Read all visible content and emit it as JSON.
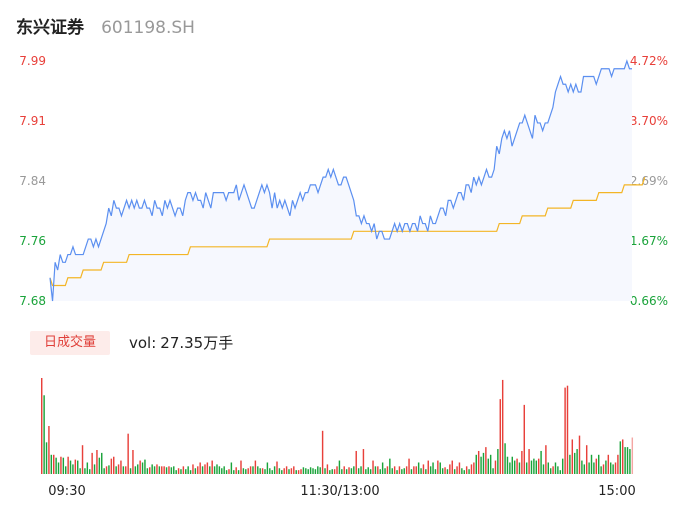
{
  "header": {
    "name": "东兴证券",
    "code": "601198.SH"
  },
  "volume_panel": {
    "tab_label": "日成交量",
    "vol_label": "vol:",
    "vol_value": "27.35万手"
  },
  "colors": {
    "price_line": "#5b8ff0",
    "avg_line": "#f3b526",
    "up": "#e8403a",
    "down": "#1aa33a",
    "neutral": "#999999",
    "area_fill": "#f6f8fe"
  },
  "chart_data": [
    {
      "type": "line",
      "title": "",
      "y_ticks_left": [
        "7.99",
        "7.91",
        "7.84",
        "7.76",
        "7.68"
      ],
      "y_ticks_right": [
        "4.72%",
        "3.70%",
        "2.69%",
        "1.67%",
        "0.66%"
      ],
      "ylim": [
        7.68,
        7.99
      ],
      "x_ticks": [
        "09:30",
        "11:30/13:00",
        "15:00"
      ],
      "series": [
        {
          "key": "price",
          "values": [
            7.71,
            7.68,
            7.73,
            7.72,
            7.74,
            7.73,
            7.73,
            7.74,
            7.74,
            7.75,
            7.74,
            7.74,
            7.74,
            7.74,
            7.75,
            7.76,
            7.76,
            7.75,
            7.76,
            7.75,
            7.76,
            7.77,
            7.78,
            7.8,
            7.79,
            7.81,
            7.8,
            7.8,
            7.79,
            7.8,
            7.81,
            7.8,
            7.81,
            7.8,
            7.81,
            7.8,
            7.8,
            7.81,
            7.8,
            7.8,
            7.79,
            7.81,
            7.8,
            7.8,
            7.79,
            7.81,
            7.8,
            7.81,
            7.8,
            7.79,
            7.8,
            7.8,
            7.79,
            7.81,
            7.82,
            7.82,
            7.81,
            7.82,
            7.81,
            7.81,
            7.8,
            7.82,
            7.81,
            7.8,
            7.82,
            7.82,
            7.82,
            7.82,
            7.82,
            7.81,
            7.82,
            7.82,
            7.82,
            7.83,
            7.81,
            7.82,
            7.83,
            7.82,
            7.81,
            7.8,
            7.8,
            7.81,
            7.82,
            7.83,
            7.82,
            7.83,
            7.82,
            7.8,
            7.82,
            7.8,
            7.81,
            7.8,
            7.81,
            7.8,
            7.79,
            7.81,
            7.8,
            7.81,
            7.82,
            7.81,
            7.82,
            7.82,
            7.83,
            7.83,
            7.83,
            7.82,
            7.83,
            7.84,
            7.84,
            7.85,
            7.84,
            7.85,
            7.84,
            7.83,
            7.83,
            7.84,
            7.84,
            7.83,
            7.82,
            7.81,
            7.79,
            7.79,
            7.78,
            7.79,
            7.78,
            7.78,
            7.77,
            7.78,
            7.76,
            7.77,
            7.77,
            7.76,
            7.76,
            7.76,
            7.77,
            7.78,
            7.77,
            7.78,
            7.77,
            7.78,
            7.78,
            7.77,
            7.78,
            7.78,
            7.77,
            7.79,
            7.78,
            7.78,
            7.77,
            7.79,
            7.78,
            7.78,
            7.79,
            7.8,
            7.8,
            7.79,
            7.81,
            7.81,
            7.8,
            7.81,
            7.82,
            7.82,
            7.81,
            7.83,
            7.83,
            7.82,
            7.84,
            7.83,
            7.84,
            7.83,
            7.84,
            7.85,
            7.84,
            7.84,
            7.85,
            7.88,
            7.87,
            7.89,
            7.9,
            7.89,
            7.9,
            7.88,
            7.89,
            7.9,
            7.91,
            7.91,
            7.92,
            7.91,
            7.9,
            7.89,
            7.92,
            7.91,
            7.91,
            7.9,
            7.91,
            7.91,
            7.92,
            7.93,
            7.95,
            7.96,
            7.97,
            7.96,
            7.96,
            7.95,
            7.96,
            7.95,
            7.96,
            7.95,
            7.95,
            7.97,
            7.97,
            7.97,
            7.97,
            7.97,
            7.96,
            7.97,
            7.98,
            7.98,
            7.98,
            7.98,
            7.97,
            7.98,
            7.98,
            7.98,
            7.98,
            7.98,
            7.99,
            7.98,
            7.98
          ]
        },
        {
          "key": "average",
          "values": [
            7.71,
            7.7,
            7.7,
            7.7,
            7.7,
            7.7,
            7.7,
            7.71,
            7.71,
            7.71,
            7.71,
            7.71,
            7.71,
            7.72,
            7.72,
            7.72,
            7.72,
            7.72,
            7.72,
            7.72,
            7.72,
            7.73,
            7.73,
            7.73,
            7.73,
            7.73,
            7.73,
            7.73,
            7.73,
            7.73,
            7.73,
            7.74,
            7.74,
            7.74,
            7.74,
            7.74,
            7.74,
            7.74,
            7.74,
            7.74,
            7.74,
            7.74,
            7.74,
            7.74,
            7.74,
            7.74,
            7.74,
            7.74,
            7.74,
            7.74,
            7.74,
            7.74,
            7.74,
            7.74,
            7.74,
            7.75,
            7.75,
            7.75,
            7.75,
            7.75,
            7.75,
            7.75,
            7.75,
            7.75,
            7.75,
            7.75,
            7.75,
            7.75,
            7.75,
            7.75,
            7.75,
            7.75,
            7.75,
            7.75,
            7.75,
            7.75,
            7.75,
            7.75,
            7.75,
            7.75,
            7.75,
            7.75,
            7.75,
            7.75,
            7.75,
            7.75,
            7.76,
            7.76,
            7.76,
            7.76,
            7.76,
            7.76,
            7.76,
            7.76,
            7.76,
            7.76,
            7.76,
            7.76,
            7.76,
            7.76,
            7.76,
            7.76,
            7.76,
            7.76,
            7.76,
            7.76,
            7.76,
            7.76,
            7.76,
            7.76,
            7.76,
            7.76,
            7.76,
            7.76,
            7.76,
            7.76,
            7.76,
            7.76,
            7.76,
            7.77,
            7.77,
            7.77,
            7.77,
            7.77,
            7.77,
            7.77,
            7.77,
            7.77,
            7.77,
            7.77,
            7.77,
            7.77,
            7.77,
            7.77,
            7.77,
            7.77,
            7.77,
            7.77,
            7.77,
            7.77,
            7.77,
            7.77,
            7.77,
            7.77,
            7.77,
            7.77,
            7.77,
            7.77,
            7.77,
            7.77,
            7.77,
            7.77,
            7.77,
            7.77,
            7.77,
            7.77,
            7.77,
            7.77,
            7.77,
            7.77,
            7.77,
            7.77,
            7.77,
            7.77,
            7.77,
            7.77,
            7.77,
            7.77,
            7.77,
            7.77,
            7.77,
            7.77,
            7.77,
            7.77,
            7.77,
            7.77,
            7.78,
            7.78,
            7.78,
            7.78,
            7.78,
            7.78,
            7.78,
            7.78,
            7.78,
            7.79,
            7.79,
            7.79,
            7.79,
            7.79,
            7.79,
            7.79,
            7.79,
            7.79,
            7.79,
            7.8,
            7.8,
            7.8,
            7.8,
            7.8,
            7.8,
            7.8,
            7.8,
            7.8,
            7.8,
            7.81,
            7.81,
            7.81,
            7.81,
            7.81,
            7.81,
            7.81,
            7.81,
            7.81,
            7.81,
            7.82,
            7.82,
            7.82,
            7.82,
            7.82,
            7.82,
            7.82,
            7.82,
            7.82,
            7.82,
            7.83,
            7.83,
            7.83,
            7.83,
            7.83,
            7.83,
            7.83,
            7.83,
            7.84
          ]
        }
      ]
    },
    {
      "type": "bar",
      "title": "",
      "ylim": [
        0,
        100
      ],
      "values": [
        100,
        82,
        33,
        50,
        20,
        20,
        17,
        12,
        18,
        17,
        8,
        18,
        14,
        10,
        15,
        14,
        6,
        30,
        6,
        12,
        5,
        22,
        10,
        25,
        17,
        22,
        6,
        8,
        9,
        16,
        18,
        8,
        10,
        14,
        8,
        8,
        42,
        6,
        25,
        8,
        10,
        14,
        12,
        15,
        6,
        7,
        10,
        8,
        10,
        8,
        8,
        8,
        7,
        8,
        7,
        8,
        4,
        6,
        5,
        8,
        5,
        8,
        4,
        10,
        6,
        8,
        12,
        8,
        10,
        12,
        8,
        14,
        8,
        10,
        8,
        6,
        8,
        4,
        5,
        12,
        4,
        7,
        4,
        14,
        6,
        5,
        6,
        8,
        8,
        14,
        8,
        6,
        6,
        5,
        12,
        6,
        4,
        8,
        13,
        6,
        4,
        6,
        8,
        5,
        6,
        8,
        4,
        4,
        5,
        7,
        6,
        5,
        7,
        6,
        5,
        8,
        7,
        45,
        6,
        10,
        4,
        5,
        5,
        8,
        14,
        5,
        8,
        5,
        7,
        6,
        8,
        24,
        6,
        8,
        26,
        5,
        7,
        5,
        14,
        8,
        8,
        5,
        12,
        6,
        8,
        16,
        6,
        8,
        4,
        8,
        5,
        6,
        8,
        16,
        5,
        8,
        8,
        12,
        6,
        10,
        5,
        14,
        8,
        12,
        5,
        14,
        12,
        6,
        7,
        5,
        10,
        14,
        5,
        8,
        12,
        6,
        4,
        8,
        5,
        10,
        12,
        20,
        24,
        18,
        22,
        28,
        16,
        20,
        6,
        14,
        26,
        78,
        98,
        32,
        18,
        12,
        18,
        14,
        16,
        12,
        24,
        72,
        12,
        26,
        14,
        16,
        14,
        16,
        24,
        10,
        30,
        12,
        6,
        8,
        12,
        8,
        4,
        16,
        90,
        92,
        20,
        36,
        22,
        26,
        40,
        14,
        10,
        30,
        12,
        20,
        12,
        16,
        20,
        8,
        10,
        14,
        20,
        12,
        10,
        12,
        20,
        34,
        36,
        28,
        28,
        26,
        38
      ]
    }
  ]
}
